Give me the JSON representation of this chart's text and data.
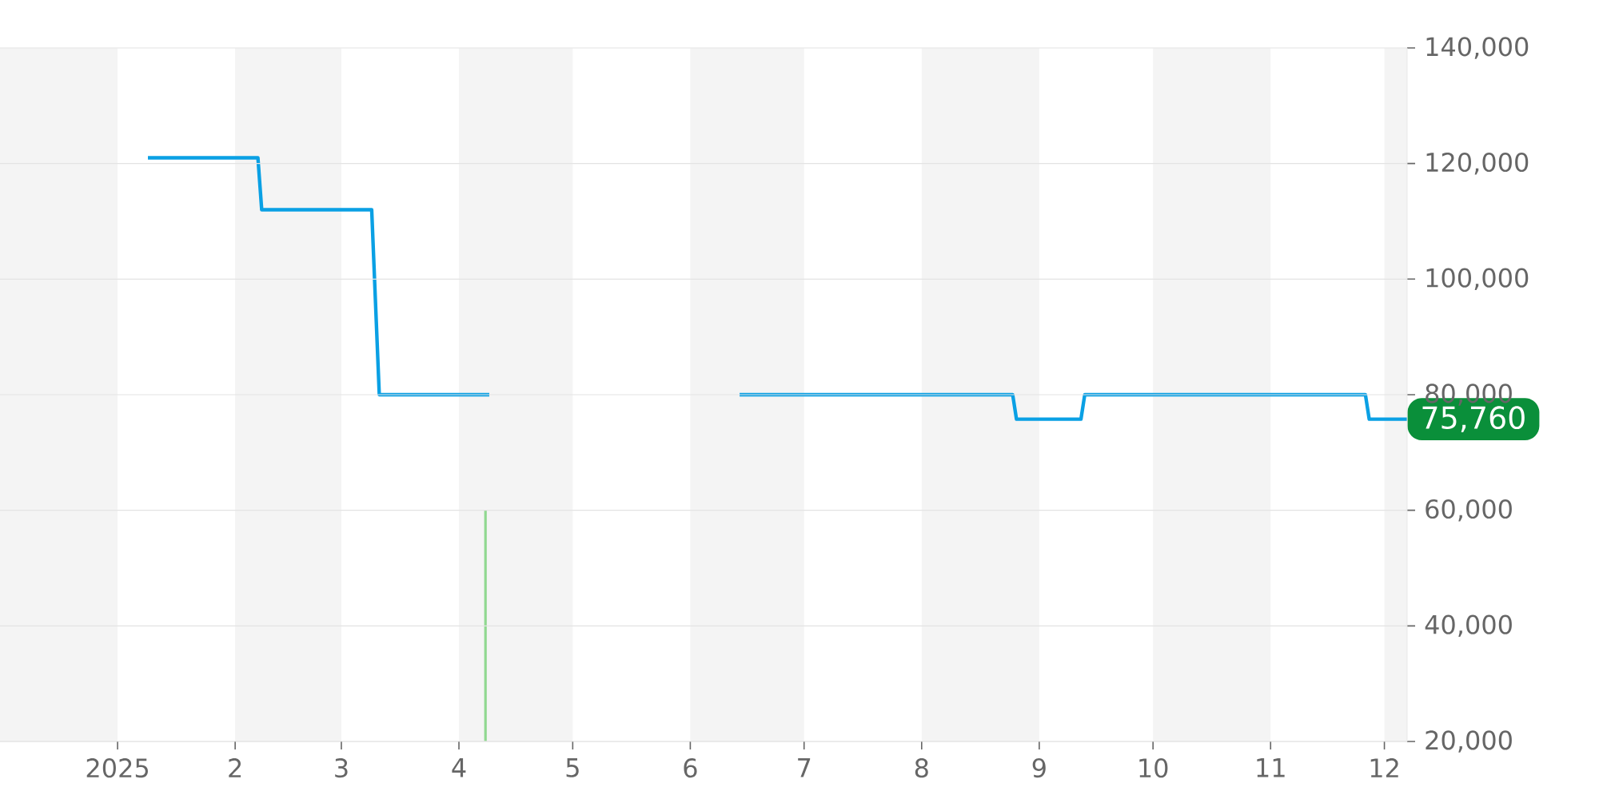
{
  "chart_data": {
    "type": "line",
    "xlim": [
      "2024-12-01",
      "2025-12-07"
    ],
    "ylim": [
      20000,
      140000
    ],
    "xticks": [
      {
        "value": "2025-01-01",
        "label": "2025"
      },
      {
        "value": "2025-02-01",
        "label": "2"
      },
      {
        "value": "2025-03-01",
        "label": "3"
      },
      {
        "value": "2025-04-01",
        "label": "4"
      },
      {
        "value": "2025-05-01",
        "label": "5"
      },
      {
        "value": "2025-06-01",
        "label": "6"
      },
      {
        "value": "2025-07-01",
        "label": "7"
      },
      {
        "value": "2025-08-01",
        "label": "8"
      },
      {
        "value": "2025-09-01",
        "label": "9"
      },
      {
        "value": "2025-10-01",
        "label": "10"
      },
      {
        "value": "2025-11-01",
        "label": "11"
      },
      {
        "value": "2025-12-01",
        "label": "12"
      }
    ],
    "yticks": [
      {
        "value": 20000,
        "label": "20,000"
      },
      {
        "value": 40000,
        "label": "40,000"
      },
      {
        "value": 60000,
        "label": "60,000"
      },
      {
        "value": 80000,
        "label": "80,000"
      },
      {
        "value": 100000,
        "label": "100,000"
      },
      {
        "value": 120000,
        "label": "120,000"
      },
      {
        "value": 140000,
        "label": "140,000"
      }
    ],
    "grid": "y",
    "bands": [
      {
        "axis": "x",
        "from": "2024-12-01",
        "to": "2025-01-01",
        "color": "#f4f4f4"
      },
      {
        "axis": "x",
        "from": "2025-02-01",
        "to": "2025-03-01",
        "color": "#f4f4f4"
      },
      {
        "axis": "x",
        "from": "2025-04-01",
        "to": "2025-05-01",
        "color": "#f4f4f4"
      },
      {
        "axis": "x",
        "from": "2025-06-01",
        "to": "2025-07-01",
        "color": "#f4f4f4"
      },
      {
        "axis": "x",
        "from": "2025-08-01",
        "to": "2025-09-01",
        "color": "#f4f4f4"
      },
      {
        "axis": "x",
        "from": "2025-10-01",
        "to": "2025-11-01",
        "color": "#f4f4f4"
      },
      {
        "axis": "x",
        "from": "2025-12-01",
        "to": "2025-12-07",
        "color": "#f4f4f4"
      }
    ],
    "series": [
      {
        "color": "#0aa0e4",
        "x": [
          "2025-01-09",
          "2025-02-07",
          "2025-02-08",
          "2025-03-09",
          "2025-03-11",
          "2025-04-09",
          "2025-05-15",
          "2025-06-14",
          "2025-08-25",
          "2025-08-26",
          "2025-09-12",
          "2025-09-13",
          "2025-11-26",
          "2025-11-27",
          "2025-12-07"
        ],
        "values": [
          121000,
          121000,
          112000,
          112000,
          80000,
          80000,
          null,
          80000,
          80000,
          75760,
          75760,
          80000,
          80000,
          75760,
          75760
        ]
      },
      {
        "type": "bar",
        "color": "#90d890",
        "x": [
          "2025-04-08"
        ],
        "values": [
          60000
        ]
      }
    ],
    "annotations": [
      {
        "text": "75,760",
        "x": "2025-12-07",
        "y": 75760
      }
    ]
  }
}
